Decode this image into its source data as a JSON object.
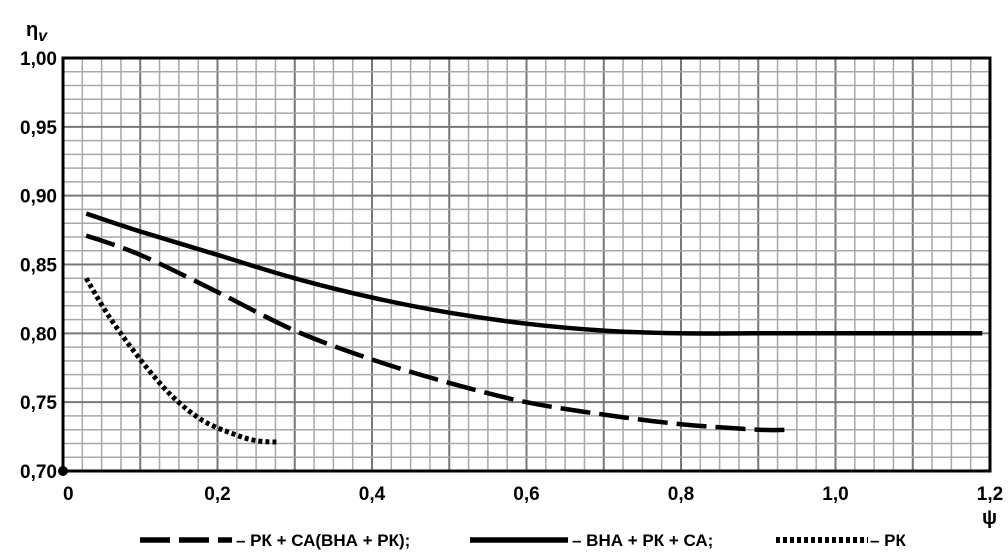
{
  "chart_data": {
    "type": "line",
    "ylabel_main": "η",
    "ylabel_sub": "v",
    "xlabel": "ψ",
    "xlim": [
      0,
      1.2
    ],
    "ylim": [
      0.7,
      1.0
    ],
    "grid": true,
    "legend_position": "bottom",
    "x_ticks": [
      "0",
      "0,2",
      "0,4",
      "0,6",
      "0,8",
      "1,0",
      "1,2"
    ],
    "y_ticks": [
      "0,70",
      "0,75",
      "0,80",
      "0,85",
      "0,90",
      "0,95",
      "1,00"
    ],
    "series": [
      {
        "name": "– РК + СА(ВНА + РК);",
        "style": "dashed",
        "x": [
          0.03,
          0.1,
          0.2,
          0.3,
          0.4,
          0.5,
          0.6,
          0.7,
          0.8,
          0.9,
          0.94
        ],
        "y": [
          0.871,
          0.857,
          0.83,
          0.802,
          0.781,
          0.764,
          0.75,
          0.741,
          0.734,
          0.73,
          0.73
        ]
      },
      {
        "name": "– ВНА + РК + СА;",
        "style": "solid",
        "x": [
          0.03,
          0.1,
          0.2,
          0.3,
          0.4,
          0.5,
          0.6,
          0.7,
          0.8,
          0.9,
          1.0,
          1.1,
          1.19
        ],
        "y": [
          0.887,
          0.874,
          0.857,
          0.84,
          0.826,
          0.815,
          0.807,
          0.802,
          0.8,
          0.8,
          0.8,
          0.8,
          0.8
        ]
      },
      {
        "name": "– РК",
        "style": "dotted",
        "x": [
          0.03,
          0.06,
          0.1,
          0.14,
          0.18,
          0.22,
          0.25,
          0.28
        ],
        "y": [
          0.84,
          0.812,
          0.781,
          0.755,
          0.737,
          0.727,
          0.722,
          0.721
        ]
      }
    ]
  }
}
